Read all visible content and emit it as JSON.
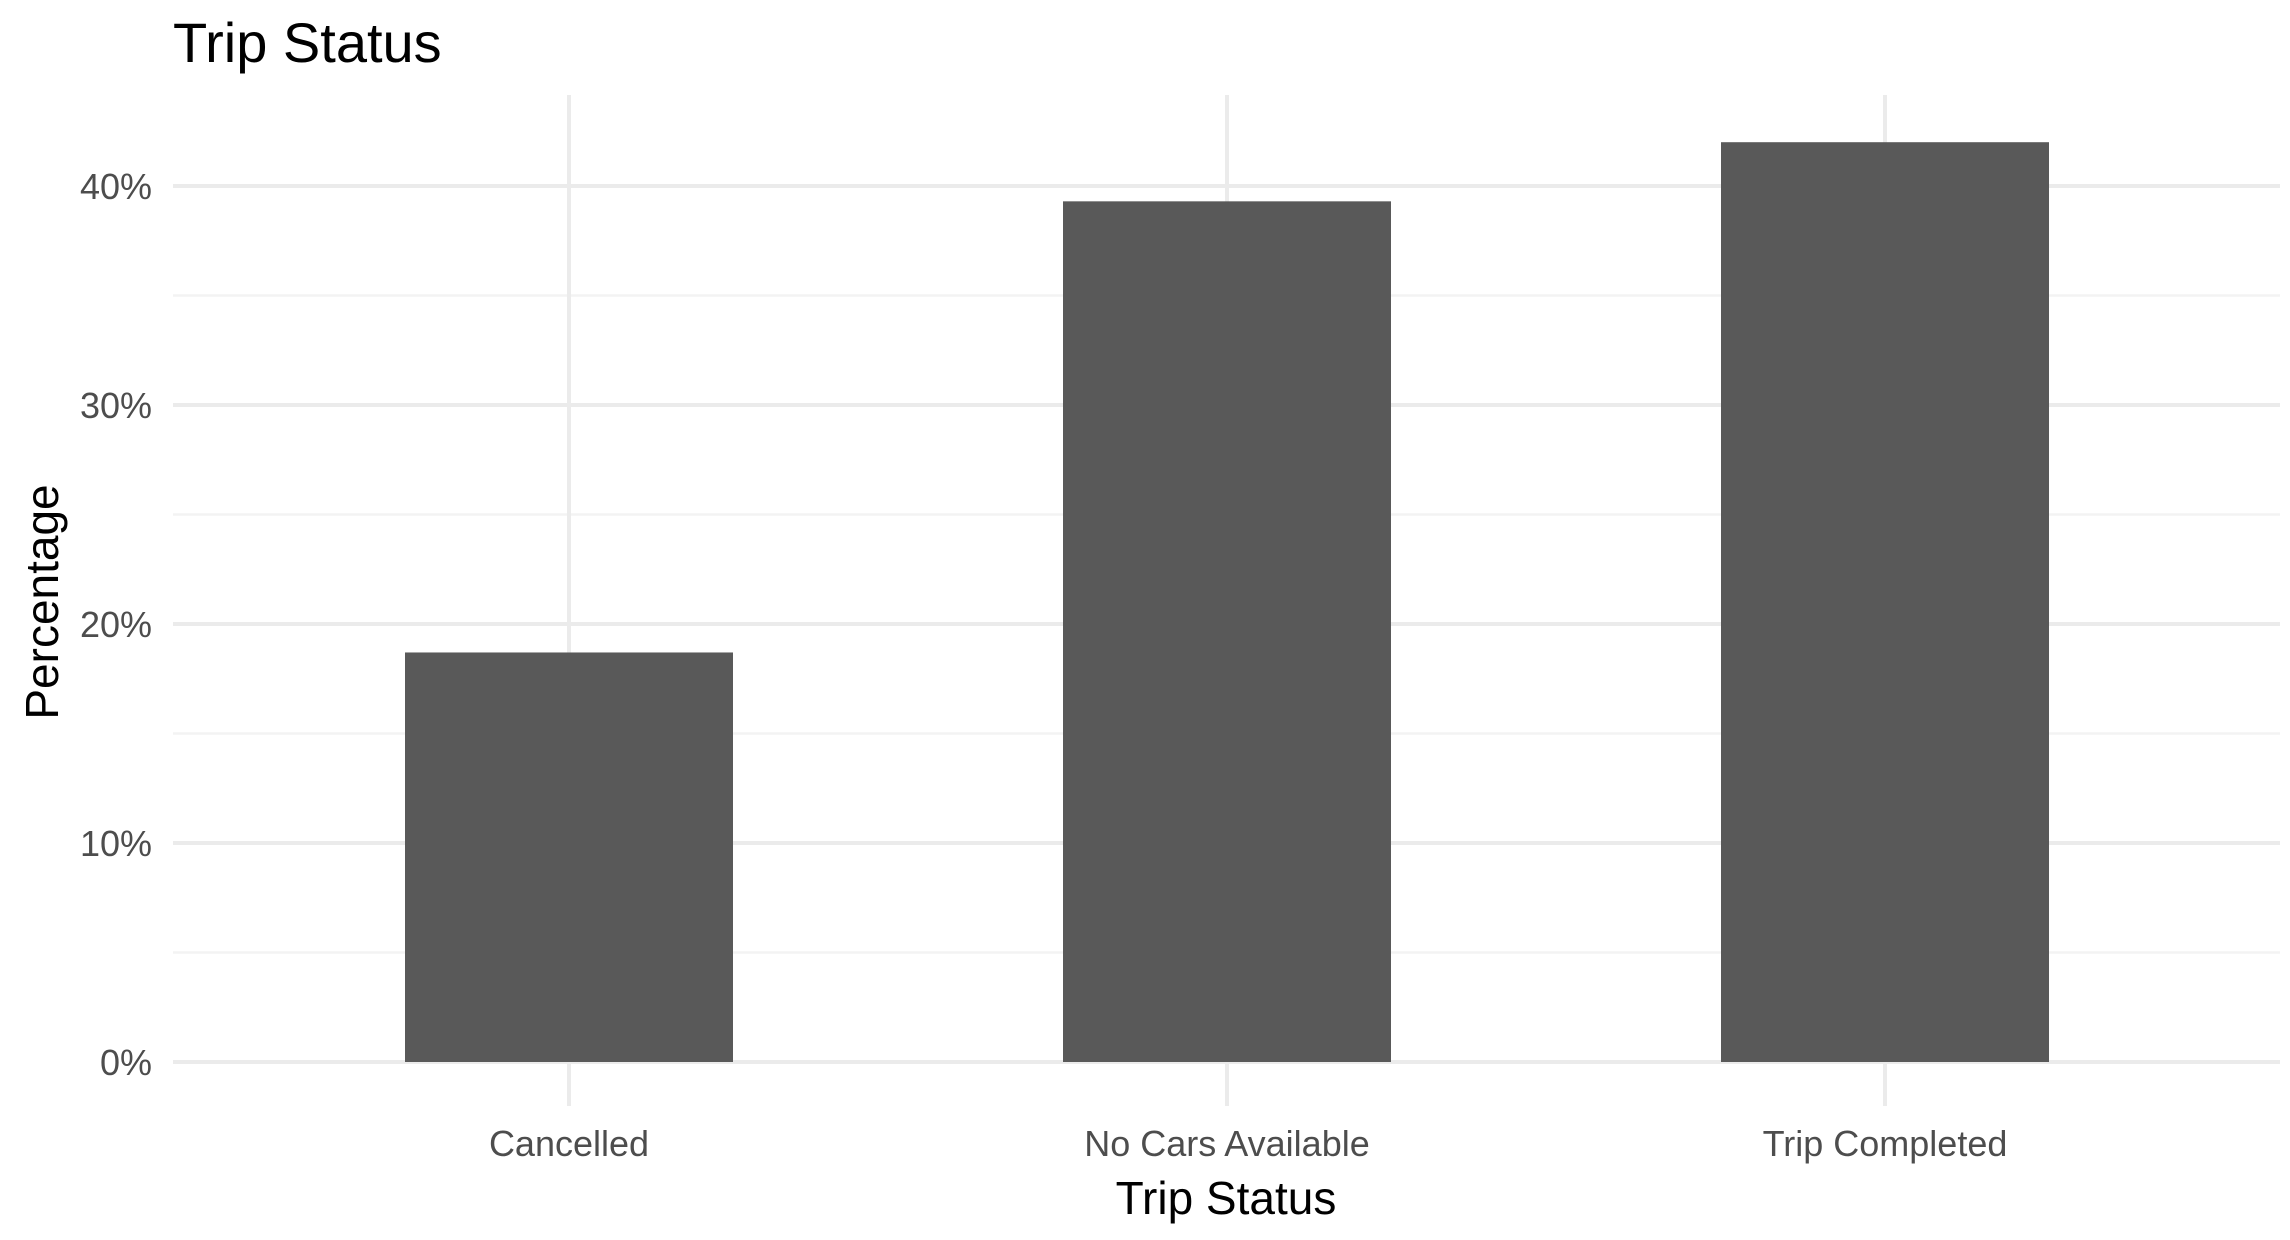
{
  "chart_data": {
    "type": "bar",
    "title": "Trip Status",
    "xlabel": "Trip Status",
    "ylabel": "Percentage",
    "categories": [
      "Cancelled",
      "No Cars Available",
      "Trip Completed"
    ],
    "values": [
      18.7,
      39.3,
      42.0
    ],
    "ylim": [
      0,
      44
    ],
    "yticks": [
      0,
      10,
      20,
      30,
      40
    ],
    "ytick_labels": [
      "0%",
      "10%",
      "20%",
      "30%",
      "40%"
    ],
    "grid": true,
    "bar_color": "#595959",
    "legend": "none"
  }
}
